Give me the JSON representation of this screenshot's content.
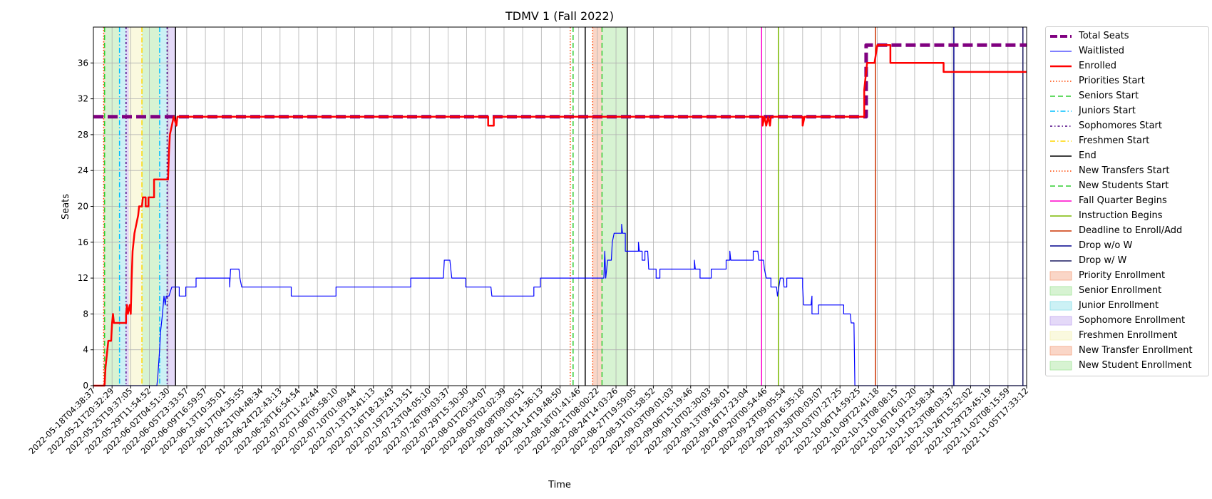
{
  "chart_data": {
    "type": "line",
    "title": "TDMV 1 (Fall 2022)",
    "xlabel": "Time",
    "ylabel": "Seats",
    "ylim": [
      0,
      40
    ],
    "yticks": [
      0,
      4,
      8,
      12,
      16,
      20,
      24,
      28,
      32,
      36
    ],
    "x_range": [
      "2022-05-18T04:38:37",
      "2022-11-05T17:33:12"
    ],
    "grid": true,
    "legend_position": "outside-right",
    "xtick_labels": [
      "2022-05-18T04:38:37",
      "2022-05-21T20:32:29",
      "2022-05-25T19:37:05",
      "2022-05-29T11:54:52",
      "2022-06-02T04:51:30",
      "2022-06-05T23:33:57",
      "2022-06-09T16:59:57",
      "2022-06-13T10:35:01",
      "2022-06-17T04:35:55",
      "2022-06-21T04:48:34",
      "2022-06-24T22:43:13",
      "2022-06-28T16:54:54",
      "2022-07-02T11:42:44",
      "2022-07-06T05:58:10",
      "2022-07-10T01:09:44",
      "2022-07-13T13:41:13",
      "2022-07-16T18:23:43",
      "2022-07-19T23:13:51",
      "2022-07-23T04:05:10",
      "2022-07-26T09:03:37",
      "2022-07-29T15:30:30",
      "2022-08-01T20:34:07",
      "2022-08-05T02:02:39",
      "2022-08-08T09:00:51",
      "2022-08-11T14:36:13",
      "2022-08-14T19:48:50",
      "2022-08-18T01:41:46",
      "2022-08-21T08:00:22",
      "2022-08-24T14:03:26",
      "2022-08-27T19:59:05",
      "2022-08-31T01:58:52",
      "2022-09-03T09:01:03",
      "2022-09-06T15:19:46",
      "2022-09-10T02:30:03",
      "2022-09-13T09:58:01",
      "2022-09-16T17:23:04",
      "2022-09-20T00:54:46",
      "2022-09-23T09:05:54",
      "2022-09-26T16:35:18",
      "2022-09-30T00:03:07",
      "2022-10-03T07:27:25",
      "2022-10-06T14:59:25",
      "2022-10-09T22:41:18",
      "2022-10-13T08:08:15",
      "2022-10-16T16:01:20",
      "2022-10-19T23:58:34",
      "2022-10-23T08:03:37",
      "2022-10-26T15:52:02",
      "2022-10-29T23:45:19",
      "2022-11-02T08:15:59",
      "2022-11-05T17:33:12"
    ],
    "series": [
      {
        "name": "Total Seats",
        "color": "#800080",
        "style": "dashed",
        "points": [
          [
            0,
            30
          ],
          [
            41.4,
            30
          ],
          [
            41.4,
            38
          ],
          [
            50,
            38
          ]
        ]
      },
      {
        "name": "Waitlisted",
        "color": "#0000ff",
        "style": "solid",
        "points": [
          [
            0,
            0
          ],
          [
            3.4,
            0
          ],
          [
            3.45,
            1
          ],
          [
            3.55,
            4
          ],
          [
            3.6,
            6
          ],
          [
            3.7,
            8
          ],
          [
            3.78,
            10
          ],
          [
            3.85,
            9
          ],
          [
            3.9,
            10
          ],
          [
            4.05,
            10
          ],
          [
            4.2,
            11
          ],
          [
            4.6,
            11
          ],
          [
            4.6,
            10
          ],
          [
            4.95,
            10
          ],
          [
            4.95,
            11
          ],
          [
            5.5,
            11
          ],
          [
            5.5,
            12
          ],
          [
            7.3,
            12
          ],
          [
            7.3,
            11
          ],
          [
            7.35,
            13
          ],
          [
            7.8,
            13
          ],
          [
            7.85,
            12
          ],
          [
            7.95,
            11
          ],
          [
            10.6,
            11
          ],
          [
            10.6,
            10
          ],
          [
            13.0,
            10
          ],
          [
            13.0,
            11
          ],
          [
            17.0,
            11
          ],
          [
            17.0,
            12
          ],
          [
            18.75,
            12
          ],
          [
            18.8,
            14
          ],
          [
            19.1,
            14
          ],
          [
            19.15,
            13
          ],
          [
            19.2,
            12
          ],
          [
            19.95,
            12
          ],
          [
            19.95,
            11
          ],
          [
            21.3,
            11
          ],
          [
            21.35,
            10
          ],
          [
            23.6,
            10
          ],
          [
            23.6,
            11
          ],
          [
            23.95,
            11
          ],
          [
            23.95,
            12
          ],
          [
            27.35,
            12
          ],
          [
            27.4,
            15
          ],
          [
            27.45,
            12
          ],
          [
            27.55,
            14
          ],
          [
            27.75,
            14
          ],
          [
            27.8,
            16
          ],
          [
            27.9,
            17
          ],
          [
            28.3,
            17
          ],
          [
            28.3,
            18
          ],
          [
            28.35,
            17
          ],
          [
            28.5,
            17
          ],
          [
            28.5,
            15
          ],
          [
            29.2,
            15
          ],
          [
            29.2,
            16
          ],
          [
            29.25,
            15
          ],
          [
            29.4,
            15
          ],
          [
            29.4,
            14
          ],
          [
            29.55,
            14
          ],
          [
            29.55,
            15
          ],
          [
            29.7,
            15
          ],
          [
            29.75,
            13
          ],
          [
            30.15,
            13
          ],
          [
            30.15,
            12
          ],
          [
            30.35,
            12
          ],
          [
            30.35,
            13
          ],
          [
            32.2,
            13
          ],
          [
            32.2,
            14
          ],
          [
            32.25,
            13
          ],
          [
            32.5,
            13
          ],
          [
            32.5,
            12
          ],
          [
            33.1,
            12
          ],
          [
            33.1,
            13
          ],
          [
            33.9,
            13
          ],
          [
            33.9,
            14
          ],
          [
            34.1,
            14
          ],
          [
            34.1,
            15
          ],
          [
            34.15,
            14
          ],
          [
            35.35,
            14
          ],
          [
            35.35,
            15
          ],
          [
            35.6,
            15
          ],
          [
            35.65,
            14
          ],
          [
            35.9,
            14
          ],
          [
            35.95,
            13
          ],
          [
            36.05,
            12
          ],
          [
            36.3,
            12
          ],
          [
            36.3,
            11
          ],
          [
            36.6,
            11
          ],
          [
            36.65,
            10
          ],
          [
            36.8,
            12
          ],
          [
            36.95,
            12
          ],
          [
            37.0,
            11
          ],
          [
            37.15,
            11
          ],
          [
            37.15,
            12
          ],
          [
            38.0,
            12
          ],
          [
            38.0,
            11
          ],
          [
            38.05,
            9
          ],
          [
            38.45,
            9
          ],
          [
            38.5,
            10
          ],
          [
            38.5,
            8
          ],
          [
            38.85,
            8
          ],
          [
            38.85,
            9
          ],
          [
            40.2,
            9
          ],
          [
            40.2,
            8
          ],
          [
            40.55,
            8
          ],
          [
            40.6,
            7
          ],
          [
            40.75,
            7
          ],
          [
            40.8,
            0
          ],
          [
            50,
            0
          ]
        ]
      },
      {
        "name": "Enrolled",
        "color": "#ff0000",
        "style": "solid",
        "points": [
          [
            0,
            0
          ],
          [
            0.6,
            0
          ],
          [
            0.65,
            2
          ],
          [
            0.75,
            4
          ],
          [
            0.8,
            5
          ],
          [
            0.95,
            5
          ],
          [
            1.0,
            7
          ],
          [
            1.05,
            8
          ],
          [
            1.1,
            7
          ],
          [
            1.3,
            7
          ],
          [
            1.5,
            7
          ],
          [
            1.75,
            7
          ],
          [
            1.75,
            8
          ],
          [
            1.8,
            9
          ],
          [
            1.85,
            8
          ],
          [
            1.95,
            9
          ],
          [
            2.0,
            8
          ],
          [
            2.05,
            12
          ],
          [
            2.1,
            15
          ],
          [
            2.2,
            17
          ],
          [
            2.3,
            18
          ],
          [
            2.4,
            19
          ],
          [
            2.45,
            20
          ],
          [
            2.6,
            20
          ],
          [
            2.65,
            21
          ],
          [
            2.8,
            21
          ],
          [
            2.8,
            20
          ],
          [
            2.95,
            20
          ],
          [
            2.95,
            21
          ],
          [
            3.25,
            21
          ],
          [
            3.25,
            23
          ],
          [
            4.0,
            23
          ],
          [
            4.05,
            26
          ],
          [
            4.1,
            28
          ],
          [
            4.2,
            29
          ],
          [
            4.3,
            30
          ],
          [
            4.45,
            29
          ],
          [
            4.5,
            30
          ],
          [
            21.15,
            30
          ],
          [
            21.15,
            29
          ],
          [
            21.45,
            29
          ],
          [
            21.45,
            30
          ],
          [
            35.85,
            30
          ],
          [
            35.85,
            29
          ],
          [
            35.95,
            30
          ],
          [
            36.05,
            29
          ],
          [
            36.15,
            30
          ],
          [
            36.25,
            29
          ],
          [
            36.3,
            30
          ],
          [
            38.0,
            30
          ],
          [
            38.0,
            29
          ],
          [
            38.1,
            30
          ],
          [
            41.3,
            30
          ],
          [
            41.3,
            33
          ],
          [
            41.45,
            36
          ],
          [
            41.85,
            36
          ],
          [
            42.0,
            38
          ],
          [
            42.7,
            38
          ],
          [
            42.7,
            36
          ],
          [
            45.55,
            36
          ],
          [
            45.55,
            35
          ],
          [
            50,
            35
          ]
        ]
      }
    ],
    "events": [
      {
        "name": "Priorities Start",
        "color": "#ff4500",
        "style": "dotted",
        "x": [
          0.55,
          25.55
        ]
      },
      {
        "name": "Seniors Start",
        "color": "#32cd32",
        "style": "dashed",
        "x": [
          0.6,
          25.7
        ]
      },
      {
        "name": "Juniors Start",
        "color": "#00bfff",
        "style": "dashdot",
        "x": [
          1.4,
          3.55
        ]
      },
      {
        "name": "Sophomores Start",
        "color": "#4b0082",
        "style": "dashdotted2",
        "x": [
          1.75,
          3.95
        ]
      },
      {
        "name": "Freshmen Start",
        "color": "#ffd700",
        "style": "dashdot",
        "x": [
          2.6
        ]
      },
      {
        "name": "End",
        "color": "#000000",
        "style": "solid",
        "x": [
          4.4,
          26.35,
          28.6
        ]
      },
      {
        "name": "New Transfers Start",
        "color": "#ff4500",
        "style": "dotted",
        "x": [
          26.75
        ]
      },
      {
        "name": "New Students Start",
        "color": "#32cd32",
        "style": "dashed",
        "x": [
          27.25
        ]
      },
      {
        "name": "Fall Quarter Begins",
        "color": "#ff00cc",
        "style": "solid",
        "x": [
          35.8
        ]
      },
      {
        "name": "Instruction Begins",
        "color": "#7ab800",
        "style": "solid",
        "x": [
          36.7
        ]
      },
      {
        "name": "Deadline to Enroll/Add",
        "color": "#cc3300",
        "style": "solid",
        "x": [
          41.9
        ]
      },
      {
        "name": "Drop w/o W",
        "color": "#00008b",
        "style": "solid",
        "x": [
          46.1
        ]
      },
      {
        "name": "Drop w/ W",
        "color": "#1a1a60",
        "style": "solid",
        "x": [
          49.8
        ]
      }
    ],
    "periods": [
      {
        "name": "Priority Enrollment",
        "color": "#f4a582",
        "ranges": [
          [
            0.55,
            0.62
          ]
        ]
      },
      {
        "name": "Senior Enrollment",
        "color": "#a6e59b",
        "ranges": [
          [
            0.62,
            1.4
          ]
        ]
      },
      {
        "name": "Junior Enrollment",
        "color": "#8de0e8",
        "ranges": [
          [
            1.4,
            1.75
          ],
          [
            3.55,
            3.95
          ]
        ]
      },
      {
        "name": "Sophomore Enrollment",
        "color": "#c3aaf0",
        "ranges": [
          [
            1.75,
            1.9
          ],
          [
            3.95,
            4.4
          ]
        ]
      },
      {
        "name": "Freshmen Enrollment",
        "color": "#f5f2b8",
        "ranges": [
          [
            1.9,
            2.6
          ]
        ]
      },
      {
        "name": "New Transfer Enrollment",
        "color": "#f4a582",
        "ranges": [
          [
            26.75,
            27.25
          ]
        ]
      },
      {
        "name": "New Student Enrollment",
        "color": "#a6e59b",
        "ranges": [
          [
            27.25,
            28.6
          ]
        ]
      }
    ],
    "extra_green_ranges": [
      [
        2.6,
        3.55
      ]
    ]
  },
  "legend": [
    {
      "label": "Total Seats",
      "kind": "line",
      "color": "#800080",
      "style": "dashed",
      "width": 4
    },
    {
      "label": "Waitlisted",
      "kind": "line",
      "color": "#0000ff",
      "style": "solid",
      "width": 1
    },
    {
      "label": "Enrolled",
      "kind": "line",
      "color": "#ff0000",
      "style": "solid",
      "width": 2.5
    },
    {
      "label": "Priorities Start",
      "kind": "line",
      "color": "#ff4500",
      "style": "dotted",
      "width": 1.5
    },
    {
      "label": "Seniors Start",
      "kind": "line",
      "color": "#32cd32",
      "style": "dashed",
      "width": 1.5
    },
    {
      "label": "Juniors Start",
      "kind": "line",
      "color": "#00bfff",
      "style": "dashdot",
      "width": 1.5
    },
    {
      "label": "Sophomores Start",
      "kind": "line",
      "color": "#4b0082",
      "style": "dashdotted2",
      "width": 1.5
    },
    {
      "label": "Freshmen Start",
      "kind": "line",
      "color": "#ffd700",
      "style": "dashdot",
      "width": 1.5
    },
    {
      "label": "End",
      "kind": "line",
      "color": "#000000",
      "style": "solid",
      "width": 1.5
    },
    {
      "label": "New Transfers Start",
      "kind": "line",
      "color": "#ff4500",
      "style": "dotted",
      "width": 1.5
    },
    {
      "label": "New Students Start",
      "kind": "line",
      "color": "#32cd32",
      "style": "dashed",
      "width": 1.5
    },
    {
      "label": "Fall Quarter Begins",
      "kind": "line",
      "color": "#ff00cc",
      "style": "solid",
      "width": 1.5
    },
    {
      "label": "Instruction Begins",
      "kind": "line",
      "color": "#7ab800",
      "style": "solid",
      "width": 1.5
    },
    {
      "label": "Deadline to Enroll/Add",
      "kind": "line",
      "color": "#cc3300",
      "style": "solid",
      "width": 1.5
    },
    {
      "label": "Drop w/o W",
      "kind": "line",
      "color": "#00008b",
      "style": "solid",
      "width": 1.5
    },
    {
      "label": "Drop w/ W",
      "kind": "line",
      "color": "#1a1a60",
      "style": "solid",
      "width": 1.5
    },
    {
      "label": "Priority Enrollment",
      "kind": "patch",
      "color": "#f4a582"
    },
    {
      "label": "Senior Enrollment",
      "kind": "patch",
      "color": "#a6e59b"
    },
    {
      "label": "Junior Enrollment",
      "kind": "patch",
      "color": "#8de0e8"
    },
    {
      "label": "Sophomore Enrollment",
      "kind": "patch",
      "color": "#c3aaf0"
    },
    {
      "label": "Freshmen Enrollment",
      "kind": "patch",
      "color": "#f5f2b8"
    },
    {
      "label": "New Transfer Enrollment",
      "kind": "patch",
      "color": "#f4a582"
    },
    {
      "label": "New Student Enrollment",
      "kind": "patch",
      "color": "#a6e59b"
    }
  ]
}
